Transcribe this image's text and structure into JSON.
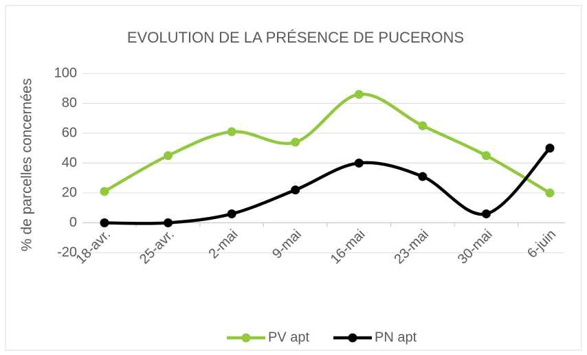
{
  "chart_data": {
    "type": "line",
    "title": "EVOLUTION DE LA PRÉSENCE DE PUCERONS",
    "y_label": "% de parcelles concernées",
    "categories": [
      "18-avr.",
      "25-avr.",
      "2-mai",
      "9-mai",
      "16-mai",
      "23-mai",
      "30-mai",
      "6-juin"
    ],
    "series": [
      {
        "name": "PV apt",
        "color": "#92c83e",
        "values": [
          21,
          45,
          61,
          54,
          86,
          65,
          45,
          20
        ]
      },
      {
        "name": "PN apt",
        "color": "#000000",
        "values": [
          0,
          0,
          6,
          22,
          40,
          31,
          6,
          50
        ]
      }
    ],
    "ylim": [
      -20,
      100
    ],
    "yticks": [
      -20,
      0,
      20,
      40,
      60,
      80,
      100
    ],
    "grid": true,
    "smooth": true,
    "legend": "bottom"
  }
}
